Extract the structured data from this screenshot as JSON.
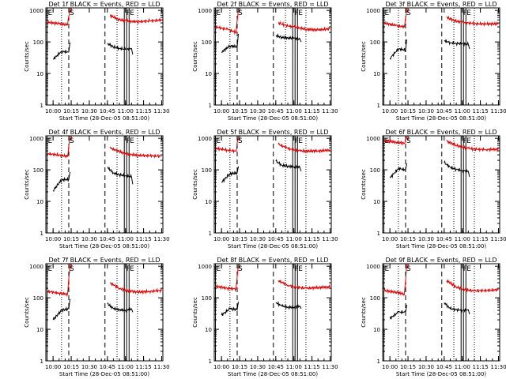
{
  "x_tick_labels": [
    "10:00",
    "10:15",
    "10:30",
    "10:45",
    "11:00",
    "11:15",
    "11:30"
  ],
  "y_tick_labels": [
    "1",
    "10",
    "100",
    "1000"
  ],
  "ylabel": "Counts/sec",
  "xlabel": "Start Time (28-Dec-05 08:51:00)",
  "marker_labels": {
    "E": "E",
    "S": "S",
    "F": "F",
    "E2": "E"
  },
  "colors": {
    "events": "#000000",
    "lld": "#e00000",
    "axes": "#000000"
  },
  "chart_data": [
    {
      "type": "line",
      "title": "Det 1f BLACK = Events, RED = LLD",
      "xlabel": "Start Time (28-Dec-05 08:51:00)",
      "ylabel": "Counts/sec",
      "xlim": [
        "09:54",
        "11:31"
      ],
      "ylim": [
        1,
        1200
      ],
      "yscale": "log",
      "series": [
        {
          "name": "Events",
          "x": [
            "10:00",
            "10:07",
            "10:13",
            "10:14",
            "10:45",
            "10:50",
            "10:55",
            "11:00",
            "11:05",
            "11:06"
          ],
          "y": [
            28,
            50,
            48,
            95,
            90,
            70,
            62,
            58,
            62,
            40
          ]
        },
        {
          "name": "LLD",
          "x": [
            "09:55",
            "10:05",
            "10:12",
            "10:14",
            "10:47",
            "10:55",
            "11:00",
            "11:05",
            "11:10",
            "11:20",
            "11:30"
          ],
          "y": [
            420,
            380,
            350,
            1150,
            700,
            500,
            480,
            450,
            440,
            460,
            500
          ]
        }
      ]
    },
    {
      "type": "line",
      "title": "Det 2f BLACK = Events, RED = LLD",
      "xlabel": "Start Time (28-Dec-05 08:51:00)",
      "ylabel": "Counts/sec",
      "xlim": [
        "09:54",
        "11:31"
      ],
      "ylim": [
        1,
        1200
      ],
      "yscale": "log",
      "series": [
        {
          "name": "Events",
          "x": [
            "10:00",
            "10:07",
            "10:13",
            "10:14",
            "10:45",
            "10:50",
            "10:55",
            "11:00",
            "11:05",
            "11:06"
          ],
          "y": [
            48,
            75,
            70,
            180,
            160,
            140,
            135,
            130,
            125,
            100
          ]
        },
        {
          "name": "LLD",
          "x": [
            "09:55",
            "10:05",
            "10:12",
            "10:14",
            "10:47",
            "10:55",
            "11:00",
            "11:05",
            "11:10",
            "11:20",
            "11:30"
          ],
          "y": [
            300,
            250,
            200,
            1150,
            400,
            320,
            300,
            280,
            250,
            240,
            260
          ]
        }
      ]
    },
    {
      "type": "line",
      "title": "Det 3f BLACK = Events, RED = LLD",
      "xlabel": "Start Time (28-Dec-05 08:51:00)",
      "ylabel": "Counts/sec",
      "xlim": [
        "09:54",
        "11:31"
      ],
      "ylim": [
        1,
        1200
      ],
      "yscale": "log",
      "series": [
        {
          "name": "Events",
          "x": [
            "10:00",
            "10:07",
            "10:13",
            "10:14",
            "10:45",
            "10:50",
            "10:55",
            "11:00",
            "11:05",
            "11:06"
          ],
          "y": [
            30,
            60,
            55,
            120,
            110,
            95,
            90,
            88,
            85,
            60
          ]
        },
        {
          "name": "LLD",
          "x": [
            "09:55",
            "10:05",
            "10:12",
            "10:14",
            "10:47",
            "10:55",
            "11:00",
            "11:05",
            "11:10",
            "11:20",
            "11:30"
          ],
          "y": [
            400,
            330,
            300,
            1150,
            600,
            450,
            420,
            400,
            380,
            370,
            380
          ]
        }
      ]
    },
    {
      "type": "line",
      "title": "Det 4f BLACK = Events, RED = LLD",
      "xlabel": "Start Time (28-Dec-05 08:51:00)",
      "ylabel": "Counts/sec",
      "xlim": [
        "09:54",
        "11:31"
      ],
      "ylim": [
        1,
        1200
      ],
      "yscale": "log",
      "series": [
        {
          "name": "Events",
          "x": [
            "10:00",
            "10:07",
            "10:13",
            "10:14",
            "10:45",
            "10:50",
            "10:55",
            "11:00",
            "11:05",
            "11:06"
          ],
          "y": [
            22,
            48,
            50,
            85,
            120,
            80,
            70,
            65,
            60,
            35
          ]
        },
        {
          "name": "LLD",
          "x": [
            "09:55",
            "10:05",
            "10:12",
            "10:14",
            "10:47",
            "10:55",
            "11:00",
            "11:05",
            "11:10",
            "11:20",
            "11:30"
          ],
          "y": [
            330,
            290,
            270,
            1150,
            500,
            380,
            320,
            300,
            290,
            280,
            270
          ]
        }
      ]
    },
    {
      "type": "line",
      "title": "Det 5f BLACK = Events, RED = LLD",
      "xlabel": "Start Time (28-Dec-05 08:51:00)",
      "ylabel": "Counts/sec",
      "xlim": [
        "09:54",
        "11:31"
      ],
      "ylim": [
        1,
        1200
      ],
      "yscale": "log",
      "series": [
        {
          "name": "Events",
          "x": [
            "10:00",
            "10:07",
            "10:13",
            "10:14",
            "10:45",
            "10:50",
            "10:55",
            "11:00",
            "11:05",
            "11:06"
          ],
          "y": [
            40,
            75,
            80,
            130,
            190,
            140,
            130,
            125,
            120,
            90
          ]
        },
        {
          "name": "LLD",
          "x": [
            "09:55",
            "10:05",
            "10:12",
            "10:14",
            "10:47",
            "10:55",
            "11:00",
            "11:05",
            "11:10",
            "11:20",
            "11:30"
          ],
          "y": [
            480,
            420,
            390,
            1150,
            650,
            480,
            420,
            400,
            390,
            400,
            420
          ]
        }
      ]
    },
    {
      "type": "line",
      "title": "Det 6f BLACK = Events, RED = LLD",
      "xlabel": "Start Time (28-Dec-05 08:51:00)",
      "ylabel": "Counts/sec",
      "xlim": [
        "09:54",
        "11:31"
      ],
      "ylim": [
        1,
        1200
      ],
      "yscale": "log",
      "series": [
        {
          "name": "Events",
          "x": [
            "10:00",
            "10:07",
            "10:13",
            "10:14",
            "10:45",
            "10:50",
            "10:55",
            "11:00",
            "11:05",
            "11:06"
          ],
          "y": [
            55,
            110,
            100,
            160,
            170,
            120,
            105,
            95,
            90,
            60
          ]
        },
        {
          "name": "LLD",
          "x": [
            "09:55",
            "10:05",
            "10:12",
            "10:14",
            "10:47",
            "10:55",
            "11:00",
            "11:05",
            "11:10",
            "11:20",
            "11:30"
          ],
          "y": [
            850,
            750,
            700,
            1150,
            800,
            600,
            520,
            480,
            450,
            440,
            450
          ]
        }
      ]
    },
    {
      "type": "line",
      "title": "Det 7f BLACK = Events, RED = LLD",
      "xlabel": "Start Time (28-Dec-05 08:51:00)",
      "ylabel": "Counts/sec",
      "xlim": [
        "09:54",
        "11:31"
      ],
      "ylim": [
        1,
        1200
      ],
      "yscale": "log",
      "series": [
        {
          "name": "Events",
          "x": [
            "10:00",
            "10:07",
            "10:13",
            "10:14",
            "10:45",
            "10:50",
            "10:55",
            "11:00",
            "11:05",
            "11:06"
          ],
          "y": [
            20,
            40,
            45,
            90,
            65,
            45,
            42,
            40,
            45,
            35
          ]
        },
        {
          "name": "LLD",
          "x": [
            "09:55",
            "10:05",
            "10:12",
            "10:14",
            "10:47",
            "10:55",
            "11:00",
            "11:05",
            "11:10",
            "11:20",
            "11:30"
          ],
          "y": [
            160,
            140,
            130,
            1150,
            300,
            200,
            170,
            160,
            150,
            160,
            170
          ]
        }
      ]
    },
    {
      "type": "line",
      "title": "Det 8f BLACK = Events, RED = LLD",
      "xlabel": "Start Time (28-Dec-05 08:51:00)",
      "ylabel": "Counts/sec",
      "xlim": [
        "09:54",
        "11:31"
      ],
      "ylim": [
        1,
        1200
      ],
      "yscale": "log",
      "series": [
        {
          "name": "Events",
          "x": [
            "10:00",
            "10:07",
            "10:13",
            "10:14",
            "10:45",
            "10:50",
            "10:55",
            "11:00",
            "11:05",
            "11:06"
          ],
          "y": [
            28,
            45,
            42,
            75,
            70,
            55,
            50,
            50,
            55,
            45
          ]
        },
        {
          "name": "LLD",
          "x": [
            "09:55",
            "10:05",
            "10:12",
            "10:14",
            "10:47",
            "10:55",
            "11:00",
            "11:05",
            "11:10",
            "11:20",
            "11:30"
          ],
          "y": [
            230,
            200,
            190,
            1150,
            350,
            250,
            220,
            210,
            200,
            210,
            220
          ]
        }
      ]
    },
    {
      "type": "line",
      "title": "Det 9f BLACK = Events, RED = LLD",
      "xlabel": "Start Time (28-Dec-05 08:51:00)",
      "ylabel": "Counts/sec",
      "xlim": [
        "09:54",
        "11:31"
      ],
      "ylim": [
        1,
        1200
      ],
      "yscale": "log",
      "series": [
        {
          "name": "Events",
          "x": [
            "10:00",
            "10:07",
            "10:13",
            "10:14",
            "10:45",
            "10:50",
            "10:55",
            "11:00",
            "11:05",
            "11:06"
          ],
          "y": [
            22,
            35,
            35,
            60,
            70,
            45,
            42,
            40,
            42,
            30
          ]
        },
        {
          "name": "LLD",
          "x": [
            "09:55",
            "10:05",
            "10:12",
            "10:14",
            "10:47",
            "10:55",
            "11:00",
            "11:05",
            "11:10",
            "11:20",
            "11:30"
          ],
          "y": [
            170,
            150,
            130,
            1150,
            350,
            220,
            190,
            175,
            165,
            170,
            180
          ]
        }
      ]
    }
  ],
  "markers": [
    {
      "label": "E",
      "time": "09:55",
      "style": "solid"
    },
    {
      "label": "",
      "time": "10:07",
      "style": "dotted"
    },
    {
      "label": "S",
      "time": "10:13",
      "style": "dashed"
    },
    {
      "label": "",
      "time": "10:43",
      "style": "dashed"
    },
    {
      "label": "",
      "time": "10:53",
      "style": "dotted"
    },
    {
      "label": "F",
      "time": "11:00",
      "style": "double"
    },
    {
      "label": "E",
      "time": "11:03",
      "style": "solid"
    },
    {
      "label": "",
      "time": "11:10",
      "style": "dotted"
    }
  ]
}
